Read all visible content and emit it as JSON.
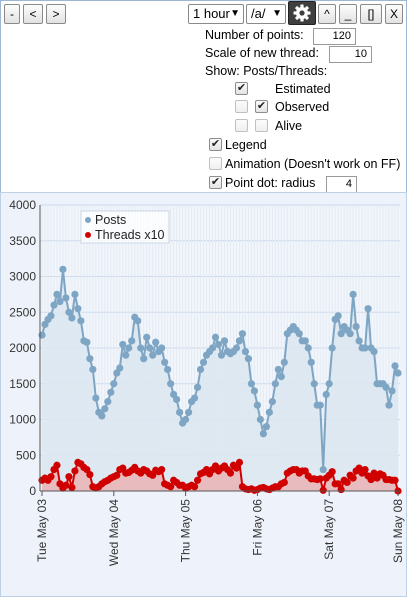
{
  "toolbar": {
    "minus": "-",
    "prev": "<",
    "next": ">",
    "interval": "1 hour",
    "board": "/a/",
    "collapse": "^",
    "minimize": "_",
    "maximize": "[]",
    "close": "X"
  },
  "settings": {
    "points_label": "Number of points:",
    "points_value": "120",
    "scale_label": "Scale of new thread:",
    "scale_value": "10",
    "show_label": "Show: Posts/Threads:",
    "estimated_label": "Estimated",
    "observed_label": "Observed",
    "alive_label": "Alive",
    "legend_label": "Legend",
    "animation_label": "Animation (Doesn't work on FF)",
    "pointdot_label": "Point dot: radius",
    "pointdot_value": "4",
    "checks": {
      "estimated_posts": true,
      "observed_posts": false,
      "observed_threads": true,
      "alive_posts": false,
      "alive_threads": false,
      "legend": true,
      "animation": false,
      "pointdot": true
    }
  },
  "colors": {
    "posts": "#7ea6c4",
    "threads": "#d00000",
    "posts_fill": "#dce6f0",
    "threads_fill": "#e9b7b9"
  },
  "chart_data": {
    "type": "line",
    "ylim": [
      0,
      4000
    ],
    "yticks": [
      0,
      500,
      1000,
      1500,
      2000,
      2500,
      3000,
      3500,
      4000
    ],
    "xtick_labels": [
      "Tue May 03",
      "Wed May 04",
      "Thu May 05",
      "Fri May 06",
      "Sat May 07",
      "Sun May 08"
    ],
    "legend": [
      "Posts",
      "Threads x10"
    ],
    "series": [
      {
        "name": "Posts",
        "values": [
          2180,
          2330,
          2400,
          2450,
          2600,
          2750,
          2650,
          3100,
          2700,
          2500,
          2420,
          2750,
          2550,
          2380,
          2100,
          2080,
          1850,
          1700,
          1300,
          1100,
          1050,
          1150,
          1250,
          1380,
          1500,
          1650,
          1720,
          2050,
          1900,
          2000,
          2100,
          2430,
          2380,
          2000,
          1850,
          2150,
          2000,
          1900,
          2080,
          1950,
          2000,
          1800,
          1700,
          1500,
          1350,
          1280,
          1100,
          950,
          1000,
          1100,
          1250,
          1300,
          1450,
          1700,
          1800,
          1900,
          1950,
          2000,
          2150,
          2050,
          1900,
          2100,
          1950,
          1920,
          1950,
          2000,
          2100,
          2200,
          1950,
          1850,
          1500,
          1400,
          1200,
          1000,
          800,
          900,
          1100,
          1250,
          1500,
          1700,
          1600,
          1800,
          2200,
          2250,
          2300,
          2250,
          2200,
          2100,
          2100,
          2000,
          1800,
          1500,
          1200,
          1200,
          300,
          1350,
          1500,
          2000,
          2400,
          2450,
          2200,
          2300,
          2250,
          2200,
          2750,
          2300,
          2100,
          2000,
          2000,
          2550,
          2000,
          1950,
          1500,
          1500,
          1500,
          1450,
          1200,
          1400,
          1750,
          1650
        ]
      },
      {
        "name": "Threads x10",
        "values": [
          150,
          180,
          150,
          200,
          300,
          360,
          100,
          40,
          80,
          200,
          50,
          280,
          400,
          380,
          330,
          300,
          230,
          60,
          40,
          60,
          100,
          130,
          150,
          180,
          200,
          220,
          300,
          320,
          250,
          260,
          290,
          330,
          280,
          250,
          300,
          280,
          240,
          220,
          290,
          270,
          300,
          100,
          80,
          60,
          150,
          120,
          80,
          80,
          40,
          60,
          80,
          60,
          150,
          240,
          260,
          300,
          240,
          300,
          350,
          280,
          320,
          350,
          300,
          250,
          360,
          320,
          400,
          60,
          30,
          20,
          30,
          10,
          20,
          40,
          50,
          30,
          20,
          40,
          60,
          60,
          100,
          120,
          250,
          280,
          300,
          300,
          250,
          280,
          280,
          210,
          170,
          170,
          160,
          170,
          10,
          180,
          220,
          270,
          100,
          100,
          20,
          150,
          120,
          220,
          180,
          280,
          320,
          250,
          300,
          210,
          160,
          250,
          180,
          240,
          220,
          160,
          160,
          150,
          150,
          0
        ]
      }
    ]
  }
}
